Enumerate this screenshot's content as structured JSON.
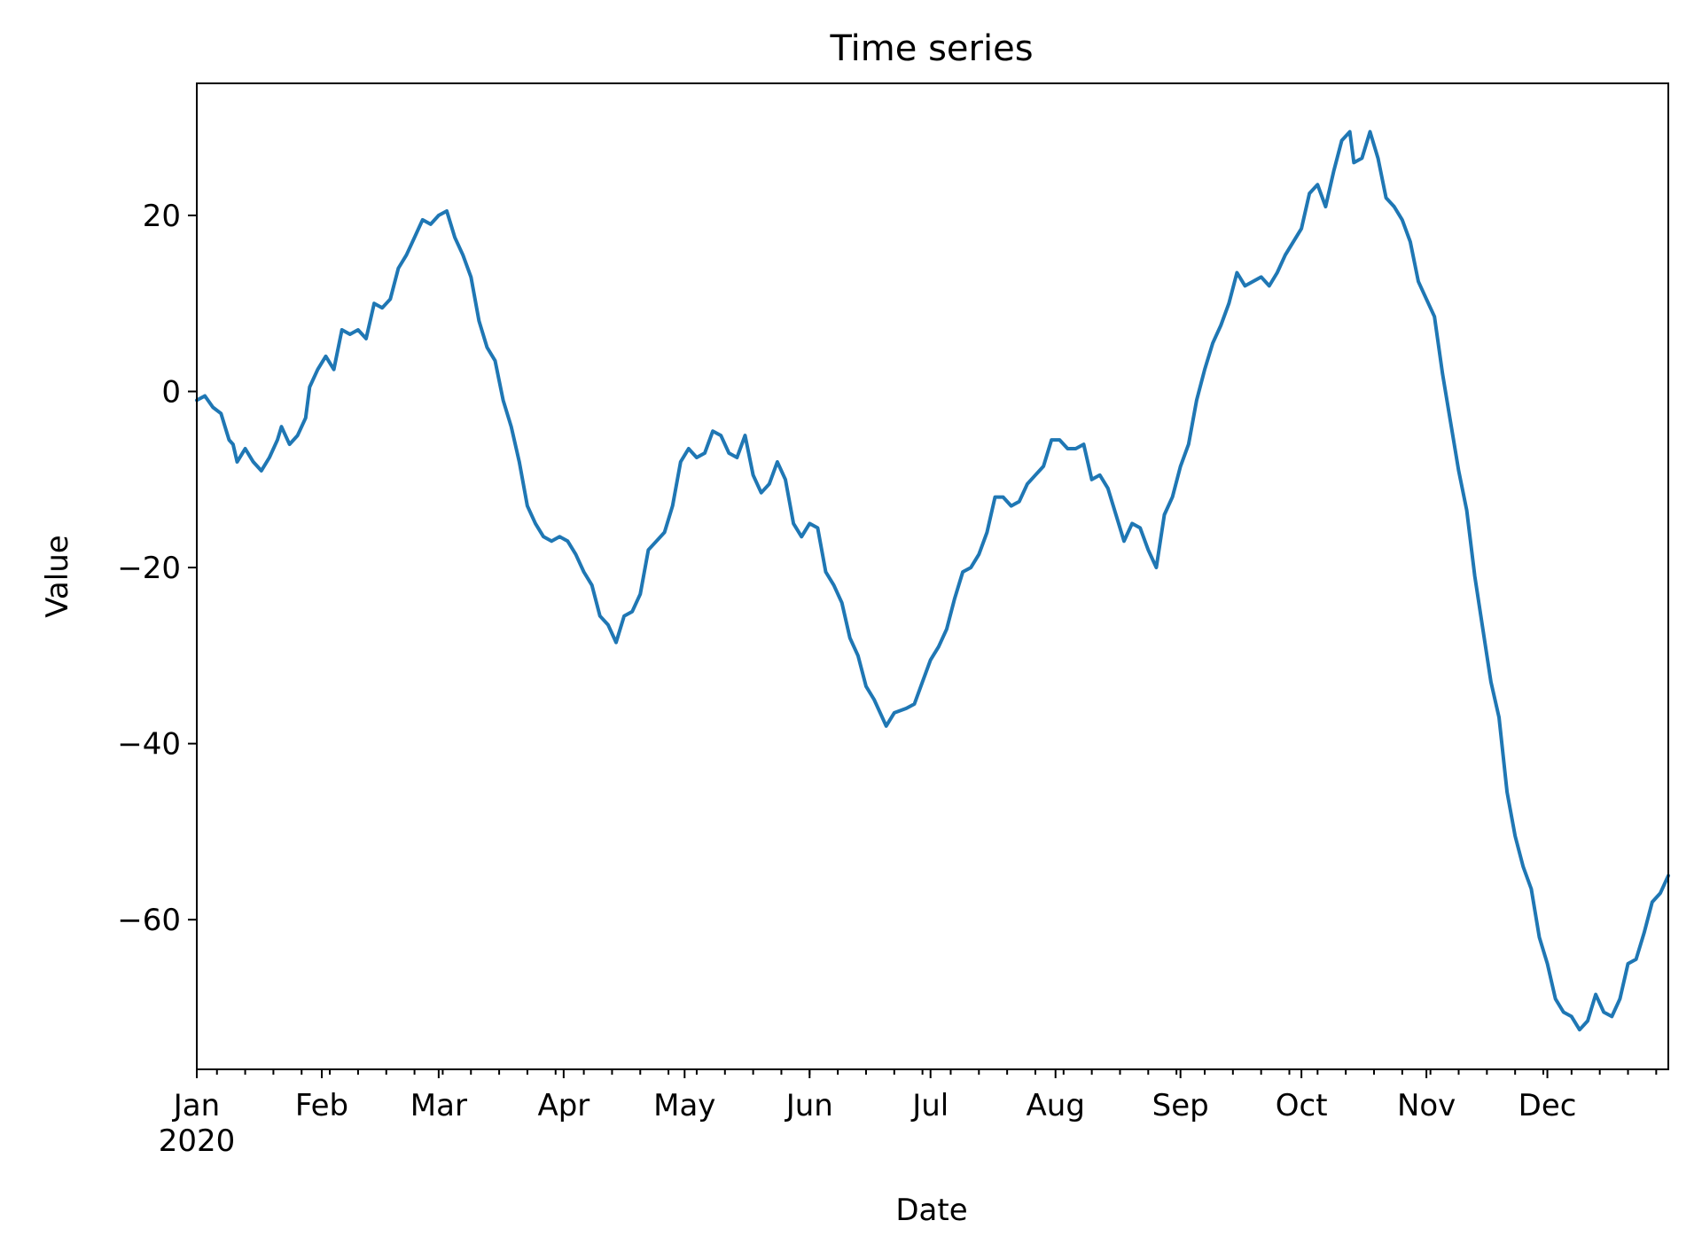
{
  "chart_data": {
    "type": "line",
    "title": "Time series",
    "xlabel": "Date",
    "ylabel": "Value",
    "x_range": [
      "2020-01-01",
      "2020-12-31"
    ],
    "ylim": [
      -77,
      35
    ],
    "grid": false,
    "legend": "none",
    "x_ticks": [
      {
        "date": "2020-01-01",
        "label": "Jan",
        "sublabel": "2020"
      },
      {
        "date": "2020-02-01",
        "label": "Feb"
      },
      {
        "date": "2020-03-01",
        "label": "Mar"
      },
      {
        "date": "2020-04-01",
        "label": "Apr"
      },
      {
        "date": "2020-05-01",
        "label": "May"
      },
      {
        "date": "2020-06-01",
        "label": "Jun"
      },
      {
        "date": "2020-07-01",
        "label": "Jul"
      },
      {
        "date": "2020-08-01",
        "label": "Aug"
      },
      {
        "date": "2020-09-01",
        "label": "Sep"
      },
      {
        "date": "2020-10-01",
        "label": "Oct"
      },
      {
        "date": "2020-11-01",
        "label": "Nov"
      },
      {
        "date": "2020-12-01",
        "label": "Dec"
      }
    ],
    "y_ticks": [
      {
        "value": 20,
        "label": "20"
      },
      {
        "value": 0,
        "label": "0"
      },
      {
        "value": -20,
        "label": "−20"
      },
      {
        "value": -40,
        "label": "−40"
      },
      {
        "value": -60,
        "label": "−60"
      }
    ],
    "series": [
      {
        "color": "#1f77b4",
        "points": [
          [
            "2020-01-01",
            -1.0
          ],
          [
            "2020-01-03",
            -0.5
          ],
          [
            "2020-01-05",
            -1.8
          ],
          [
            "2020-01-07",
            -2.5
          ],
          [
            "2020-01-09",
            -5.5
          ],
          [
            "2020-01-10",
            -6.0
          ],
          [
            "2020-01-11",
            -8.0
          ],
          [
            "2020-01-13",
            -6.5
          ],
          [
            "2020-01-15",
            -8.0
          ],
          [
            "2020-01-17",
            -9.0
          ],
          [
            "2020-01-19",
            -7.5
          ],
          [
            "2020-01-21",
            -5.5
          ],
          [
            "2020-01-22",
            -4.0
          ],
          [
            "2020-01-24",
            -6.0
          ],
          [
            "2020-01-26",
            -5.0
          ],
          [
            "2020-01-28",
            -3.0
          ],
          [
            "2020-01-29",
            0.5
          ],
          [
            "2020-01-31",
            2.5
          ],
          [
            "2020-02-02",
            4.0
          ],
          [
            "2020-02-04",
            2.5
          ],
          [
            "2020-02-06",
            7.0
          ],
          [
            "2020-02-08",
            6.5
          ],
          [
            "2020-02-10",
            7.0
          ],
          [
            "2020-02-12",
            6.0
          ],
          [
            "2020-02-14",
            10.0
          ],
          [
            "2020-02-16",
            9.5
          ],
          [
            "2020-02-18",
            10.5
          ],
          [
            "2020-02-20",
            14.0
          ],
          [
            "2020-02-22",
            15.5
          ],
          [
            "2020-02-24",
            17.5
          ],
          [
            "2020-02-26",
            19.5
          ],
          [
            "2020-02-28",
            19.0
          ],
          [
            "2020-03-01",
            20.0
          ],
          [
            "2020-03-03",
            20.5
          ],
          [
            "2020-03-05",
            17.5
          ],
          [
            "2020-03-07",
            15.5
          ],
          [
            "2020-03-09",
            13.0
          ],
          [
            "2020-03-11",
            8.0
          ],
          [
            "2020-03-13",
            5.0
          ],
          [
            "2020-03-15",
            3.5
          ],
          [
            "2020-03-17",
            -1.0
          ],
          [
            "2020-03-19",
            -4.0
          ],
          [
            "2020-03-21",
            -8.0
          ],
          [
            "2020-03-23",
            -13.0
          ],
          [
            "2020-03-25",
            -15.0
          ],
          [
            "2020-03-27",
            -16.5
          ],
          [
            "2020-03-29",
            -17.0
          ],
          [
            "2020-03-31",
            -16.5
          ],
          [
            "2020-04-02",
            -17.0
          ],
          [
            "2020-04-04",
            -18.5
          ],
          [
            "2020-04-06",
            -20.5
          ],
          [
            "2020-04-08",
            -22.0
          ],
          [
            "2020-04-10",
            -25.5
          ],
          [
            "2020-04-12",
            -26.5
          ],
          [
            "2020-04-14",
            -28.5
          ],
          [
            "2020-04-16",
            -25.5
          ],
          [
            "2020-04-18",
            -25.0
          ],
          [
            "2020-04-20",
            -23.0
          ],
          [
            "2020-04-22",
            -18.0
          ],
          [
            "2020-04-24",
            -17.0
          ],
          [
            "2020-04-26",
            -16.0
          ],
          [
            "2020-04-28",
            -13.0
          ],
          [
            "2020-04-30",
            -8.0
          ],
          [
            "2020-05-02",
            -6.5
          ],
          [
            "2020-05-04",
            -7.5
          ],
          [
            "2020-05-06",
            -7.0
          ],
          [
            "2020-05-08",
            -4.5
          ],
          [
            "2020-05-10",
            -5.0
          ],
          [
            "2020-05-12",
            -7.0
          ],
          [
            "2020-05-14",
            -7.5
          ],
          [
            "2020-05-16",
            -5.0
          ],
          [
            "2020-05-18",
            -9.5
          ],
          [
            "2020-05-20",
            -11.5
          ],
          [
            "2020-05-22",
            -10.5
          ],
          [
            "2020-05-24",
            -8.0
          ],
          [
            "2020-05-26",
            -10.0
          ],
          [
            "2020-05-28",
            -15.0
          ],
          [
            "2020-05-30",
            -16.5
          ],
          [
            "2020-06-01",
            -15.0
          ],
          [
            "2020-06-03",
            -15.5
          ],
          [
            "2020-06-05",
            -20.5
          ],
          [
            "2020-06-07",
            -22.0
          ],
          [
            "2020-06-09",
            -24.0
          ],
          [
            "2020-06-11",
            -28.0
          ],
          [
            "2020-06-13",
            -30.0
          ],
          [
            "2020-06-15",
            -33.5
          ],
          [
            "2020-06-17",
            -35.0
          ],
          [
            "2020-06-19",
            -37.0
          ],
          [
            "2020-06-20",
            -38.0
          ],
          [
            "2020-06-22",
            -36.5
          ],
          [
            "2020-06-25",
            -36.0
          ],
          [
            "2020-06-27",
            -35.5
          ],
          [
            "2020-06-29",
            -33.0
          ],
          [
            "2020-07-01",
            -30.5
          ],
          [
            "2020-07-03",
            -29.0
          ],
          [
            "2020-07-05",
            -27.0
          ],
          [
            "2020-07-07",
            -23.5
          ],
          [
            "2020-07-09",
            -20.5
          ],
          [
            "2020-07-11",
            -20.0
          ],
          [
            "2020-07-13",
            -18.5
          ],
          [
            "2020-07-15",
            -16.0
          ],
          [
            "2020-07-17",
            -12.0
          ],
          [
            "2020-07-19",
            -12.0
          ],
          [
            "2020-07-21",
            -13.0
          ],
          [
            "2020-07-23",
            -12.5
          ],
          [
            "2020-07-25",
            -10.5
          ],
          [
            "2020-07-27",
            -9.5
          ],
          [
            "2020-07-29",
            -8.5
          ],
          [
            "2020-07-31",
            -5.5
          ],
          [
            "2020-08-02",
            -5.5
          ],
          [
            "2020-08-04",
            -6.5
          ],
          [
            "2020-08-06",
            -6.5
          ],
          [
            "2020-08-08",
            -6.0
          ],
          [
            "2020-08-10",
            -10.0
          ],
          [
            "2020-08-12",
            -9.5
          ],
          [
            "2020-08-14",
            -11.0
          ],
          [
            "2020-08-16",
            -14.0
          ],
          [
            "2020-08-18",
            -17.0
          ],
          [
            "2020-08-20",
            -15.0
          ],
          [
            "2020-08-22",
            -15.5
          ],
          [
            "2020-08-24",
            -18.0
          ],
          [
            "2020-08-26",
            -20.0
          ],
          [
            "2020-08-28",
            -14.0
          ],
          [
            "2020-08-30",
            -12.0
          ],
          [
            "2020-09-01",
            -8.5
          ],
          [
            "2020-09-03",
            -6.0
          ],
          [
            "2020-09-05",
            -1.0
          ],
          [
            "2020-09-07",
            2.5
          ],
          [
            "2020-09-09",
            5.5
          ],
          [
            "2020-09-11",
            7.5
          ],
          [
            "2020-09-13",
            10.0
          ],
          [
            "2020-09-15",
            13.5
          ],
          [
            "2020-09-17",
            12.0
          ],
          [
            "2020-09-19",
            12.5
          ],
          [
            "2020-09-21",
            13.0
          ],
          [
            "2020-09-23",
            12.0
          ],
          [
            "2020-09-25",
            13.5
          ],
          [
            "2020-09-27",
            15.5
          ],
          [
            "2020-09-29",
            17.0
          ],
          [
            "2020-10-01",
            18.5
          ],
          [
            "2020-10-03",
            22.5
          ],
          [
            "2020-10-05",
            23.5
          ],
          [
            "2020-10-07",
            21.0
          ],
          [
            "2020-10-09",
            25.0
          ],
          [
            "2020-10-11",
            28.5
          ],
          [
            "2020-10-13",
            29.5
          ],
          [
            "2020-10-14",
            26.0
          ],
          [
            "2020-10-16",
            26.5
          ],
          [
            "2020-10-18",
            29.5
          ],
          [
            "2020-10-20",
            26.5
          ],
          [
            "2020-10-22",
            22.0
          ],
          [
            "2020-10-24",
            21.0
          ],
          [
            "2020-10-26",
            19.5
          ],
          [
            "2020-10-28",
            17.0
          ],
          [
            "2020-10-30",
            12.5
          ],
          [
            "2020-11-01",
            10.5
          ],
          [
            "2020-11-03",
            8.5
          ],
          [
            "2020-11-05",
            2.0
          ],
          [
            "2020-11-07",
            -3.5
          ],
          [
            "2020-11-09",
            -9.0
          ],
          [
            "2020-11-11",
            -13.5
          ],
          [
            "2020-11-13",
            -21.0
          ],
          [
            "2020-11-15",
            -27.0
          ],
          [
            "2020-11-17",
            -33.0
          ],
          [
            "2020-11-19",
            -37.0
          ],
          [
            "2020-11-21",
            -45.5
          ],
          [
            "2020-11-23",
            -50.5
          ],
          [
            "2020-11-25",
            -54.0
          ],
          [
            "2020-11-27",
            -56.5
          ],
          [
            "2020-11-29",
            -62.0
          ],
          [
            "2020-12-01",
            -65.0
          ],
          [
            "2020-12-03",
            -69.0
          ],
          [
            "2020-12-05",
            -70.5
          ],
          [
            "2020-12-07",
            -71.0
          ],
          [
            "2020-12-09",
            -72.5
          ],
          [
            "2020-12-11",
            -71.5
          ],
          [
            "2020-12-13",
            -68.5
          ],
          [
            "2020-12-15",
            -70.5
          ],
          [
            "2020-12-17",
            -71.0
          ],
          [
            "2020-12-19",
            -69.0
          ],
          [
            "2020-12-21",
            -65.0
          ],
          [
            "2020-12-23",
            -64.5
          ],
          [
            "2020-12-25",
            -61.5
          ],
          [
            "2020-12-27",
            -58.0
          ],
          [
            "2020-12-29",
            -57.0
          ],
          [
            "2020-12-31",
            -55.0
          ]
        ]
      }
    ]
  }
}
